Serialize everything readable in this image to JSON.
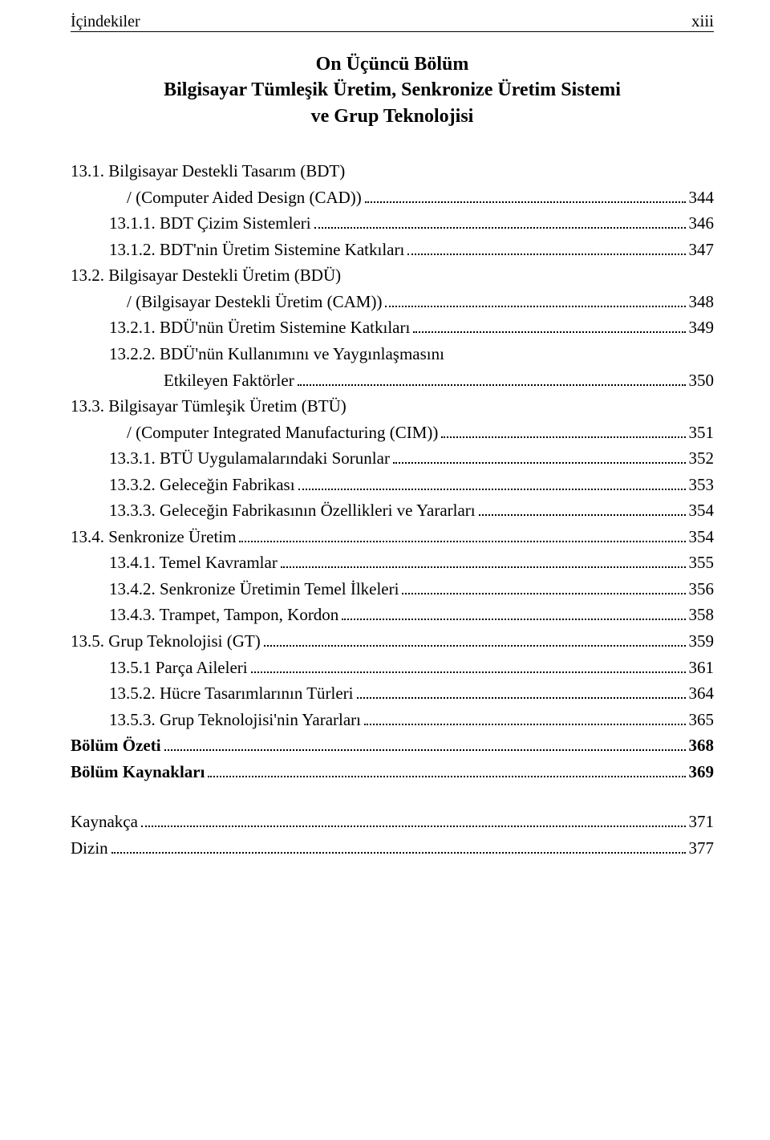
{
  "header": {
    "left": "İçindekiler",
    "right": "xiii"
  },
  "chapter": {
    "title": "On Üçüncü Bölüm",
    "subtitle1": "Bilgisayar Tümleşik Üretim, Senkronize Üretim Sistemi",
    "subtitle2": "ve Grup Teknolojisi"
  },
  "toc": [
    {
      "label": "13.1. Bilgisayar Destekli Tasarım (BDT)",
      "indent": "ind-0"
    },
    {
      "label": "/ (Computer Aided Design (CAD))",
      "page": "344",
      "indent": "cont-1"
    },
    {
      "label": "13.1.1. BDT Çizim Sistemleri",
      "page": "346",
      "indent": "ind-1"
    },
    {
      "label": "13.1.2. BDT'nin Üretim Sistemine Katkıları",
      "page": "347",
      "indent": "ind-1"
    },
    {
      "label": "13.2. Bilgisayar Destekli Üretim (BDÜ)",
      "indent": "ind-0"
    },
    {
      "label": "/ (Bilgisayar Destekli Üretim (CAM))",
      "page": "348",
      "indent": "cont-1"
    },
    {
      "label": "13.2.1. BDÜ'nün Üretim Sistemine Katkıları",
      "page": "349",
      "indent": "ind-1"
    },
    {
      "label": "13.2.2. BDÜ'nün Kullanımını ve Yaygınlaşmasını",
      "indent": "ind-1"
    },
    {
      "label": "Etkileyen Faktörler",
      "page": "350",
      "indent": "ind-2"
    },
    {
      "label": "13.3. Bilgisayar Tümleşik Üretim (BTÜ)",
      "indent": "ind-0"
    },
    {
      "label": "/ (Computer Integrated Manufacturing (CIM))",
      "page": "351",
      "indent": "cont-1"
    },
    {
      "label": "13.3.1. BTÜ Uygulamalarındaki Sorunlar",
      "page": "352",
      "indent": "ind-1"
    },
    {
      "label": "13.3.2. Geleceğin Fabrikası",
      "page": "353",
      "indent": "ind-1"
    },
    {
      "label": "13.3.3. Geleceğin Fabrikasının Özellikleri ve Yararları",
      "page": "354",
      "indent": "ind-1"
    },
    {
      "label": "13.4. Senkronize Üretim",
      "page": "354",
      "indent": "ind-0"
    },
    {
      "label": "13.4.1. Temel Kavramlar",
      "page": "355",
      "indent": "ind-1"
    },
    {
      "label": "13.4.2. Senkronize Üretimin Temel İlkeleri",
      "page": "356",
      "indent": "ind-1"
    },
    {
      "label": "13.4.3. Trampet, Tampon, Kordon",
      "page": "358",
      "indent": "ind-1"
    },
    {
      "label": "13.5. Grup Teknolojisi (GT)",
      "page": "359",
      "indent": "ind-0"
    },
    {
      "label": "13.5.1 Parça Aileleri",
      "page": "361",
      "indent": "ind-1"
    },
    {
      "label": "13.5.2. Hücre Tasarımlarının Türleri",
      "page": "364",
      "indent": "ind-1"
    },
    {
      "label": "13.5.3. Grup Teknolojisi'nin Yararları",
      "page": "365",
      "indent": "ind-1"
    },
    {
      "label": "Bölüm Özeti",
      "page": "368",
      "indent": "ind-0",
      "bold": true
    },
    {
      "label": "Bölüm Kaynakları",
      "page": "369",
      "indent": "ind-0",
      "bold": true
    },
    {
      "spacer": true
    },
    {
      "label": "Kaynakça",
      "page": "371",
      "indent": "ind-0"
    },
    {
      "label": "Dizin",
      "page": "377",
      "indent": "ind-0"
    }
  ]
}
